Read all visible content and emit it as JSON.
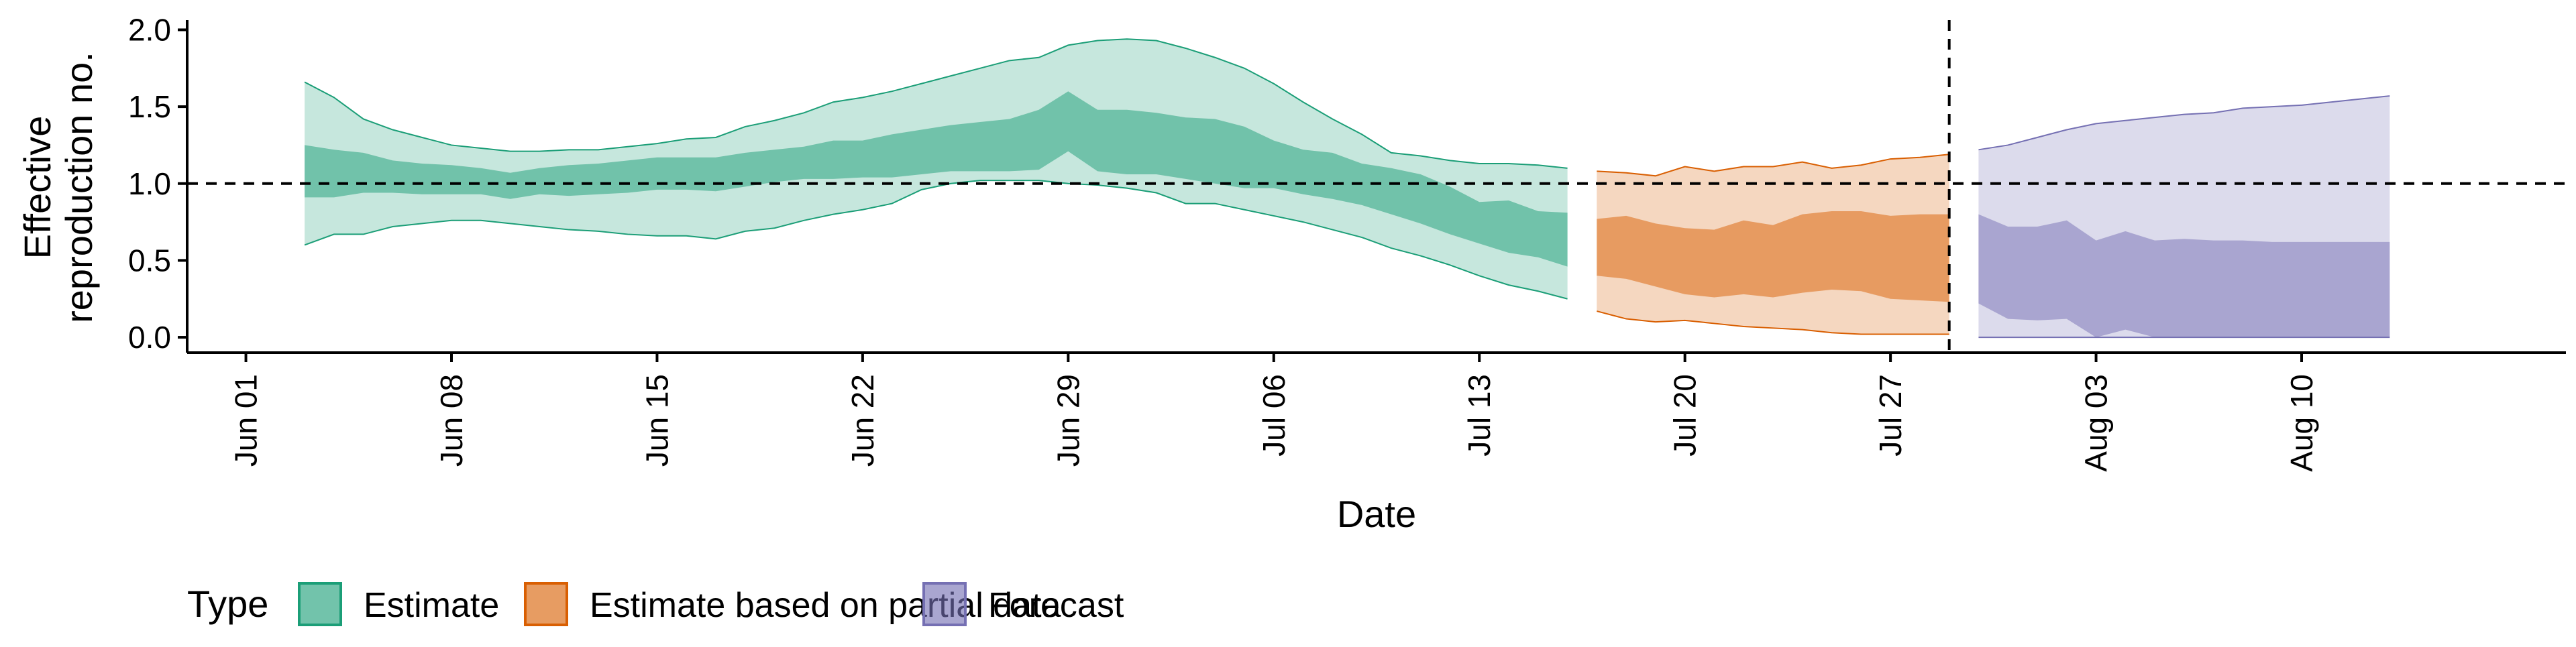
{
  "chart_data": {
    "type": "area",
    "xlabel": "Date",
    "ylabel_lines": [
      "Effective",
      "reproduction no."
    ],
    "x_ticks": [
      "2020-06-01",
      "2020-06-08",
      "2020-06-15",
      "2020-06-22",
      "2020-06-29",
      "2020-07-06",
      "2020-07-13",
      "2020-07-20",
      "2020-07-27",
      "2020-08-03",
      "2020-08-10"
    ],
    "x_tick_labels": [
      "Jun 01",
      "Jun 08",
      "Jun 15",
      "Jun 22",
      "Jun 29",
      "Jul 06",
      "Jul 13",
      "Jul 20",
      "Jul 27",
      "Aug 03",
      "Aug 10"
    ],
    "x_range": [
      "2020-05-30",
      "2020-08-19"
    ],
    "ylim": [
      -0.1,
      2.05
    ],
    "y_ticks": [
      0.0,
      0.5,
      1.0,
      1.5,
      2.0
    ],
    "y_tick_labels": [
      "0.0",
      "0.5",
      "1.0",
      "1.5",
      "2.0"
    ],
    "reference_line_y": 1.0,
    "reference_line_x": "2020-07-29",
    "legend": {
      "title": "Type",
      "position": "bottom",
      "entries": [
        "Estimate",
        "Estimate based on partial data",
        "Forecast"
      ]
    },
    "series": [
      {
        "name": "Estimate",
        "fill_color": "#1b9e77",
        "dates": [
          "2020-06-03",
          "2020-06-04",
          "2020-06-05",
          "2020-06-06",
          "2020-06-07",
          "2020-06-08",
          "2020-06-09",
          "2020-06-10",
          "2020-06-11",
          "2020-06-12",
          "2020-06-13",
          "2020-06-14",
          "2020-06-15",
          "2020-06-16",
          "2020-06-17",
          "2020-06-18",
          "2020-06-19",
          "2020-06-20",
          "2020-06-21",
          "2020-06-22",
          "2020-06-23",
          "2020-06-24",
          "2020-06-25",
          "2020-06-26",
          "2020-06-27",
          "2020-06-28",
          "2020-06-29",
          "2020-06-30",
          "2020-07-01",
          "2020-07-02",
          "2020-07-03",
          "2020-07-04",
          "2020-07-05",
          "2020-07-06",
          "2020-07-07",
          "2020-07-08",
          "2020-07-09",
          "2020-07-10",
          "2020-07-11",
          "2020-07-12",
          "2020-07-13",
          "2020-07-14",
          "2020-07-15",
          "2020-07-16"
        ],
        "lower_90": [
          0.6,
          0.67,
          0.67,
          0.72,
          0.74,
          0.76,
          0.76,
          0.74,
          0.72,
          0.7,
          0.69,
          0.67,
          0.66,
          0.66,
          0.64,
          0.69,
          0.71,
          0.76,
          0.8,
          0.83,
          0.87,
          0.96,
          1.0,
          1.02,
          1.02,
          1.02,
          1.0,
          0.99,
          0.97,
          0.94,
          0.87,
          0.87,
          0.83,
          0.79,
          0.75,
          0.7,
          0.65,
          0.58,
          0.53,
          0.47,
          0.4,
          0.34,
          0.3,
          0.25
        ],
        "lower_50": [
          0.91,
          0.91,
          0.94,
          0.94,
          0.93,
          0.93,
          0.93,
          0.9,
          0.93,
          0.92,
          0.93,
          0.94,
          0.96,
          0.96,
          0.95,
          0.98,
          1.01,
          1.03,
          1.03,
          1.04,
          1.04,
          1.06,
          1.08,
          1.08,
          1.08,
          1.09,
          1.21,
          1.08,
          1.06,
          1.06,
          1.03,
          1.0,
          0.97,
          0.97,
          0.93,
          0.9,
          0.86,
          0.8,
          0.74,
          0.67,
          0.61,
          0.55,
          0.52,
          0.46
        ],
        "upper_50": [
          1.25,
          1.22,
          1.2,
          1.15,
          1.13,
          1.12,
          1.1,
          1.07,
          1.1,
          1.12,
          1.13,
          1.15,
          1.17,
          1.17,
          1.17,
          1.2,
          1.22,
          1.24,
          1.28,
          1.28,
          1.32,
          1.35,
          1.38,
          1.4,
          1.42,
          1.48,
          1.6,
          1.48,
          1.48,
          1.46,
          1.43,
          1.42,
          1.37,
          1.28,
          1.22,
          1.2,
          1.13,
          1.1,
          1.06,
          0.98,
          0.88,
          0.89,
          0.82,
          0.81
        ],
        "upper_90": [
          1.66,
          1.56,
          1.42,
          1.35,
          1.3,
          1.25,
          1.23,
          1.21,
          1.21,
          1.22,
          1.22,
          1.24,
          1.26,
          1.29,
          1.3,
          1.37,
          1.41,
          1.46,
          1.53,
          1.56,
          1.6,
          1.65,
          1.7,
          1.75,
          1.8,
          1.82,
          1.9,
          1.93,
          1.94,
          1.93,
          1.88,
          1.82,
          1.75,
          1.65,
          1.53,
          1.42,
          1.32,
          1.2,
          1.18,
          1.15,
          1.13,
          1.13,
          1.12,
          1.1
        ]
      },
      {
        "name": "Estimate based on partial data",
        "fill_color": "#d95f02",
        "dates": [
          "2020-07-17",
          "2020-07-18",
          "2020-07-19",
          "2020-07-20",
          "2020-07-21",
          "2020-07-22",
          "2020-07-23",
          "2020-07-24",
          "2020-07-25",
          "2020-07-26",
          "2020-07-27",
          "2020-07-28",
          "2020-07-29"
        ],
        "lower_90": [
          0.17,
          0.12,
          0.1,
          0.11,
          0.09,
          0.07,
          0.06,
          0.05,
          0.03,
          0.02,
          0.02,
          0.02,
          0.02
        ],
        "lower_50": [
          0.4,
          0.38,
          0.33,
          0.28,
          0.26,
          0.28,
          0.26,
          0.29,
          0.31,
          0.3,
          0.25,
          0.24,
          0.23
        ],
        "upper_50": [
          0.77,
          0.79,
          0.74,
          0.71,
          0.7,
          0.76,
          0.73,
          0.8,
          0.82,
          0.82,
          0.79,
          0.8,
          0.8
        ],
        "upper_90": [
          1.08,
          1.07,
          1.05,
          1.11,
          1.08,
          1.11,
          1.11,
          1.14,
          1.1,
          1.12,
          1.16,
          1.17,
          1.19
        ]
      },
      {
        "name": "Forecast",
        "fill_color": "#7570b3",
        "dates": [
          "2020-07-30",
          "2020-07-31",
          "2020-08-01",
          "2020-08-02",
          "2020-08-03",
          "2020-08-04",
          "2020-08-05",
          "2020-08-06",
          "2020-08-07",
          "2020-08-08",
          "2020-08-09",
          "2020-08-10",
          "2020-08-11",
          "2020-08-12",
          "2020-08-13"
        ],
        "lower_90": [
          0,
          0,
          0,
          0,
          0,
          0,
          0,
          0,
          0,
          0,
          0,
          0,
          0,
          0,
          0
        ],
        "lower_50": [
          0.22,
          0.12,
          0.11,
          0.12,
          0.0,
          0.05,
          0.0,
          0.0,
          0.0,
          0.0,
          0.0,
          0.0,
          0.0,
          0.0,
          0.0
        ],
        "upper_50": [
          0.8,
          0.72,
          0.72,
          0.76,
          0.63,
          0.69,
          0.63,
          0.64,
          0.63,
          0.63,
          0.62,
          0.62,
          0.62,
          0.62,
          0.62
        ],
        "upper_90": [
          1.22,
          1.25,
          1.3,
          1.35,
          1.39,
          1.41,
          1.43,
          1.45,
          1.46,
          1.49,
          1.5,
          1.51,
          1.53,
          1.55,
          1.57
        ]
      }
    ]
  }
}
